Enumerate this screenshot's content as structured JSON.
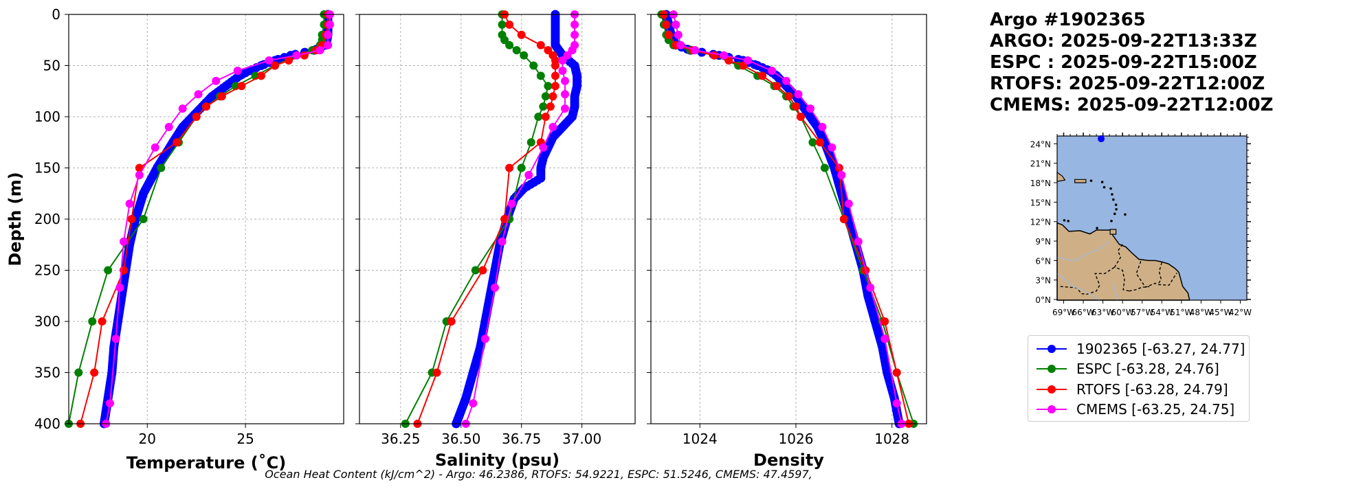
{
  "title_lines": [
    "Argo #1902365",
    "ARGO: 2025-09-22T13:33Z",
    "ESPC : 2025-09-22T15:00Z",
    "RTOFS: 2025-09-22T12:00Z",
    "CMEMS: 2025-09-22T12:00Z"
  ],
  "legend": [
    {
      "label": "1902365 [-63.27, 24.77]",
      "color": "#0000ff"
    },
    {
      "label": "ESPC [-63.28, 24.76]",
      "color": "#008000"
    },
    {
      "label": "RTOFS [-63.28, 24.79]",
      "color": "#ff0000"
    },
    {
      "label": "CMEMS [-63.25, 24.75]",
      "color": "#ff00ff"
    }
  ],
  "footer": "Ocean Heat Content (kJ/cm^2) - Argo: 46.2386,  RTOFS: 54.9221,  ESPC: 51.5246,  CMEMS: 47.4597,",
  "chart_data": [
    {
      "type": "line",
      "xlabel": "Temperature (˚C)",
      "ylabel": "Depth (m)",
      "xlim": [
        16,
        30
      ],
      "ylim": [
        400,
        0
      ],
      "xticks": [
        20,
        25
      ],
      "xtick_labels": [
        "20",
        "25"
      ],
      "yticks": [
        0,
        50,
        100,
        150,
        200,
        250,
        300,
        350,
        400
      ],
      "ytick_labels": [
        "0",
        "50",
        "100",
        "150",
        "200",
        "250",
        "300",
        "350",
        "400"
      ],
      "grid": true,
      "series": [
        {
          "name": "1902365",
          "color": "#0000ff",
          "dense": true,
          "depth": [
            0,
            10,
            20,
            30,
            35,
            40,
            45,
            50,
            55,
            60,
            70,
            80,
            90,
            100,
            110,
            125,
            150,
            175,
            200,
            225,
            250,
            275,
            300,
            325,
            350,
            375,
            400
          ],
          "values": [
            29.2,
            29.2,
            29.2,
            29.1,
            28.5,
            27.3,
            26.5,
            25.8,
            25.2,
            24.7,
            24.0,
            23.3,
            22.8,
            22.3,
            21.8,
            21.3,
            20.5,
            19.8,
            19.4,
            19.1,
            18.9,
            18.7,
            18.5,
            18.3,
            18.2,
            18.0,
            17.8
          ]
        },
        {
          "name": "ESPC",
          "color": "#008000",
          "dense": false,
          "depth": [
            0,
            10,
            20,
            25,
            30,
            35,
            40,
            50,
            60,
            70,
            80,
            90,
            100,
            125,
            150,
            200,
            250,
            300,
            350,
            400
          ],
          "values": [
            29.0,
            29.0,
            28.9,
            28.9,
            28.8,
            28.4,
            27.6,
            26.5,
            25.5,
            24.5,
            23.7,
            23.0,
            22.5,
            21.6,
            20.7,
            19.8,
            18.0,
            17.2,
            16.5,
            16.0
          ]
        },
        {
          "name": "RTOFS",
          "color": "#ff0000",
          "dense": false,
          "depth": [
            0,
            10,
            20,
            30,
            35,
            40,
            45,
            50,
            60,
            70,
            80,
            90,
            100,
            125,
            150,
            200,
            250,
            300,
            350,
            400
          ],
          "values": [
            29.2,
            29.2,
            29.1,
            28.9,
            28.6,
            28.0,
            27.2,
            26.5,
            25.8,
            24.8,
            23.8,
            23.0,
            22.5,
            21.5,
            19.6,
            19.2,
            18.8,
            17.7,
            17.3,
            16.6
          ]
        },
        {
          "name": "CMEMS",
          "color": "#ff00ff",
          "dense": false,
          "depth": [
            0,
            10,
            20,
            30,
            35,
            40,
            45,
            55,
            65,
            78,
            92,
            110,
            130,
            157,
            185,
            222,
            267,
            317,
            380,
            400
          ],
          "values": [
            29.3,
            29.3,
            29.2,
            29.2,
            28.8,
            27.6,
            26.2,
            24.6,
            23.5,
            22.6,
            21.8,
            21.1,
            20.4,
            19.6,
            19.1,
            18.8,
            18.6,
            18.4,
            18.1,
            17.9
          ]
        }
      ]
    },
    {
      "type": "line",
      "xlabel": "Salinity (psu)",
      "ylabel": "",
      "xlim": [
        36.08,
        37.22
      ],
      "ylim": [
        400,
        0
      ],
      "xticks": [
        36.25,
        36.5,
        36.75,
        37.0
      ],
      "xtick_labels": [
        "36.25",
        "36.50",
        "36.75",
        "37.00"
      ],
      "yticks": [
        0,
        50,
        100,
        150,
        200,
        250,
        300,
        350,
        400
      ],
      "grid": true,
      "series": [
        {
          "name": "1902365",
          "color": "#0000ff",
          "dense": true,
          "depth": [
            0,
            10,
            20,
            30,
            40,
            50,
            60,
            70,
            80,
            90,
            100,
            110,
            120,
            130,
            140,
            150,
            160,
            170,
            180,
            200,
            225,
            250,
            275,
            300,
            325,
            350,
            375,
            400
          ],
          "values": [
            36.89,
            36.89,
            36.89,
            36.89,
            36.92,
            36.97,
            36.98,
            36.98,
            36.97,
            36.97,
            36.96,
            36.92,
            36.88,
            36.86,
            36.84,
            36.83,
            36.83,
            36.76,
            36.72,
            36.69,
            36.66,
            36.64,
            36.62,
            36.6,
            36.58,
            36.55,
            36.52,
            36.48
          ]
        },
        {
          "name": "ESPC",
          "color": "#008000",
          "dense": false,
          "depth": [
            0,
            10,
            20,
            25,
            30,
            35,
            40,
            50,
            60,
            70,
            80,
            90,
            100,
            125,
            150,
            200,
            250,
            300,
            350,
            400
          ],
          "values": [
            36.67,
            36.67,
            36.67,
            36.68,
            36.7,
            36.73,
            36.76,
            36.8,
            36.83,
            36.86,
            36.85,
            36.84,
            36.82,
            36.79,
            36.75,
            36.7,
            36.56,
            36.44,
            36.38,
            36.27
          ]
        },
        {
          "name": "RTOFS",
          "color": "#ff0000",
          "dense": false,
          "depth": [
            0,
            10,
            20,
            30,
            35,
            40,
            45,
            50,
            60,
            70,
            80,
            90,
            100,
            125,
            150,
            200,
            250,
            300,
            350,
            400
          ],
          "values": [
            36.68,
            36.7,
            36.75,
            36.83,
            36.86,
            36.88,
            36.89,
            36.89,
            36.89,
            36.89,
            36.88,
            36.87,
            36.85,
            36.83,
            36.7,
            36.68,
            36.59,
            36.46,
            36.4,
            36.32
          ]
        },
        {
          "name": "CMEMS",
          "color": "#ff00ff",
          "dense": false,
          "depth": [
            0,
            10,
            20,
            30,
            35,
            40,
            45,
            55,
            65,
            78,
            92,
            110,
            130,
            157,
            185,
            222,
            267,
            317,
            380,
            400
          ],
          "values": [
            36.97,
            36.97,
            36.97,
            36.97,
            36.96,
            36.94,
            36.92,
            36.92,
            36.93,
            36.93,
            36.93,
            36.88,
            36.84,
            36.78,
            36.71,
            36.67,
            36.64,
            36.6,
            36.55,
            36.52
          ]
        }
      ]
    },
    {
      "type": "line",
      "xlabel": "Density",
      "ylabel": "",
      "xlim": [
        1022.98,
        1028.72
      ],
      "ylim": [
        400,
        0
      ],
      "xticks": [
        1024,
        1026,
        1028
      ],
      "xtick_labels": [
        "1024",
        "1026",
        "1028"
      ],
      "yticks": [
        0,
        50,
        100,
        150,
        200,
        250,
        300,
        350,
        400
      ],
      "grid": true,
      "series": [
        {
          "name": "1902365",
          "color": "#0000ff",
          "dense": true,
          "depth": [
            0,
            10,
            20,
            30,
            35,
            40,
            45,
            50,
            55,
            60,
            70,
            80,
            90,
            100,
            110,
            125,
            150,
            175,
            200,
            225,
            250,
            275,
            300,
            325,
            350,
            375,
            400
          ],
          "values": [
            1023.3,
            1023.35,
            1023.4,
            1023.5,
            1023.8,
            1024.4,
            1024.9,
            1025.2,
            1025.45,
            1025.6,
            1025.8,
            1026.0,
            1026.15,
            1026.3,
            1026.45,
            1026.6,
            1026.8,
            1026.95,
            1027.1,
            1027.25,
            1027.4,
            1027.5,
            1027.65,
            1027.8,
            1027.9,
            1028.05,
            1028.15
          ]
        },
        {
          "name": "ESPC",
          "color": "#008000",
          "dense": false,
          "depth": [
            0,
            10,
            20,
            25,
            30,
            35,
            40,
            50,
            60,
            70,
            80,
            90,
            100,
            125,
            150,
            200,
            250,
            300,
            350,
            400
          ],
          "values": [
            1023.2,
            1023.25,
            1023.3,
            1023.35,
            1023.45,
            1023.8,
            1024.3,
            1024.8,
            1025.2,
            1025.55,
            1025.8,
            1025.95,
            1026.1,
            1026.35,
            1026.6,
            1027.0,
            1027.4,
            1027.8,
            1028.1,
            1028.45
          ]
        },
        {
          "name": "RTOFS",
          "color": "#ff0000",
          "dense": false,
          "depth": [
            0,
            10,
            20,
            30,
            35,
            40,
            45,
            50,
            60,
            70,
            80,
            90,
            100,
            125,
            150,
            200,
            250,
            300,
            350,
            400
          ],
          "values": [
            1023.25,
            1023.3,
            1023.35,
            1023.5,
            1023.85,
            1024.3,
            1024.6,
            1024.9,
            1025.3,
            1025.6,
            1025.85,
            1026.0,
            1026.1,
            1026.5,
            1026.9,
            1027.0,
            1027.45,
            1027.85,
            1028.1,
            1028.35
          ]
        },
        {
          "name": "CMEMS",
          "color": "#ff00ff",
          "dense": false,
          "depth": [
            0,
            10,
            20,
            30,
            35,
            40,
            45,
            55,
            65,
            78,
            92,
            110,
            130,
            157,
            185,
            222,
            267,
            317,
            380,
            400
          ],
          "values": [
            1023.45,
            1023.5,
            1023.55,
            1023.6,
            1023.9,
            1024.5,
            1025.0,
            1025.5,
            1025.8,
            1026.05,
            1026.3,
            1026.55,
            1026.75,
            1026.95,
            1027.1,
            1027.3,
            1027.55,
            1027.85,
            1028.1,
            1028.2
          ]
        }
      ]
    }
  ],
  "map": {
    "lon_ticks": [
      "69°W",
      "66°W",
      "63°W",
      "60°W",
      "57°W",
      "54°W",
      "51°W",
      "48°W",
      "45°W",
      "42°W"
    ],
    "lat_ticks": [
      "0°N",
      "3°N",
      "6°N",
      "9°N",
      "12°N",
      "15°N",
      "18°N",
      "21°N",
      "24°N"
    ],
    "lon_values": [
      -69,
      -66,
      -63,
      -60,
      -57,
      -54,
      -51,
      -48,
      -45,
      -42
    ],
    "lat_values": [
      0,
      3,
      6,
      9,
      12,
      15,
      18,
      21,
      24
    ],
    "lon_range": [
      -70,
      -41
    ],
    "lat_range": [
      -0.1,
      25.2
    ],
    "float_position": [
      -63.27,
      24.77
    ],
    "ocean_color": "#97b6e1",
    "land_color": "#cfb086",
    "float_color": "#0000ff"
  }
}
